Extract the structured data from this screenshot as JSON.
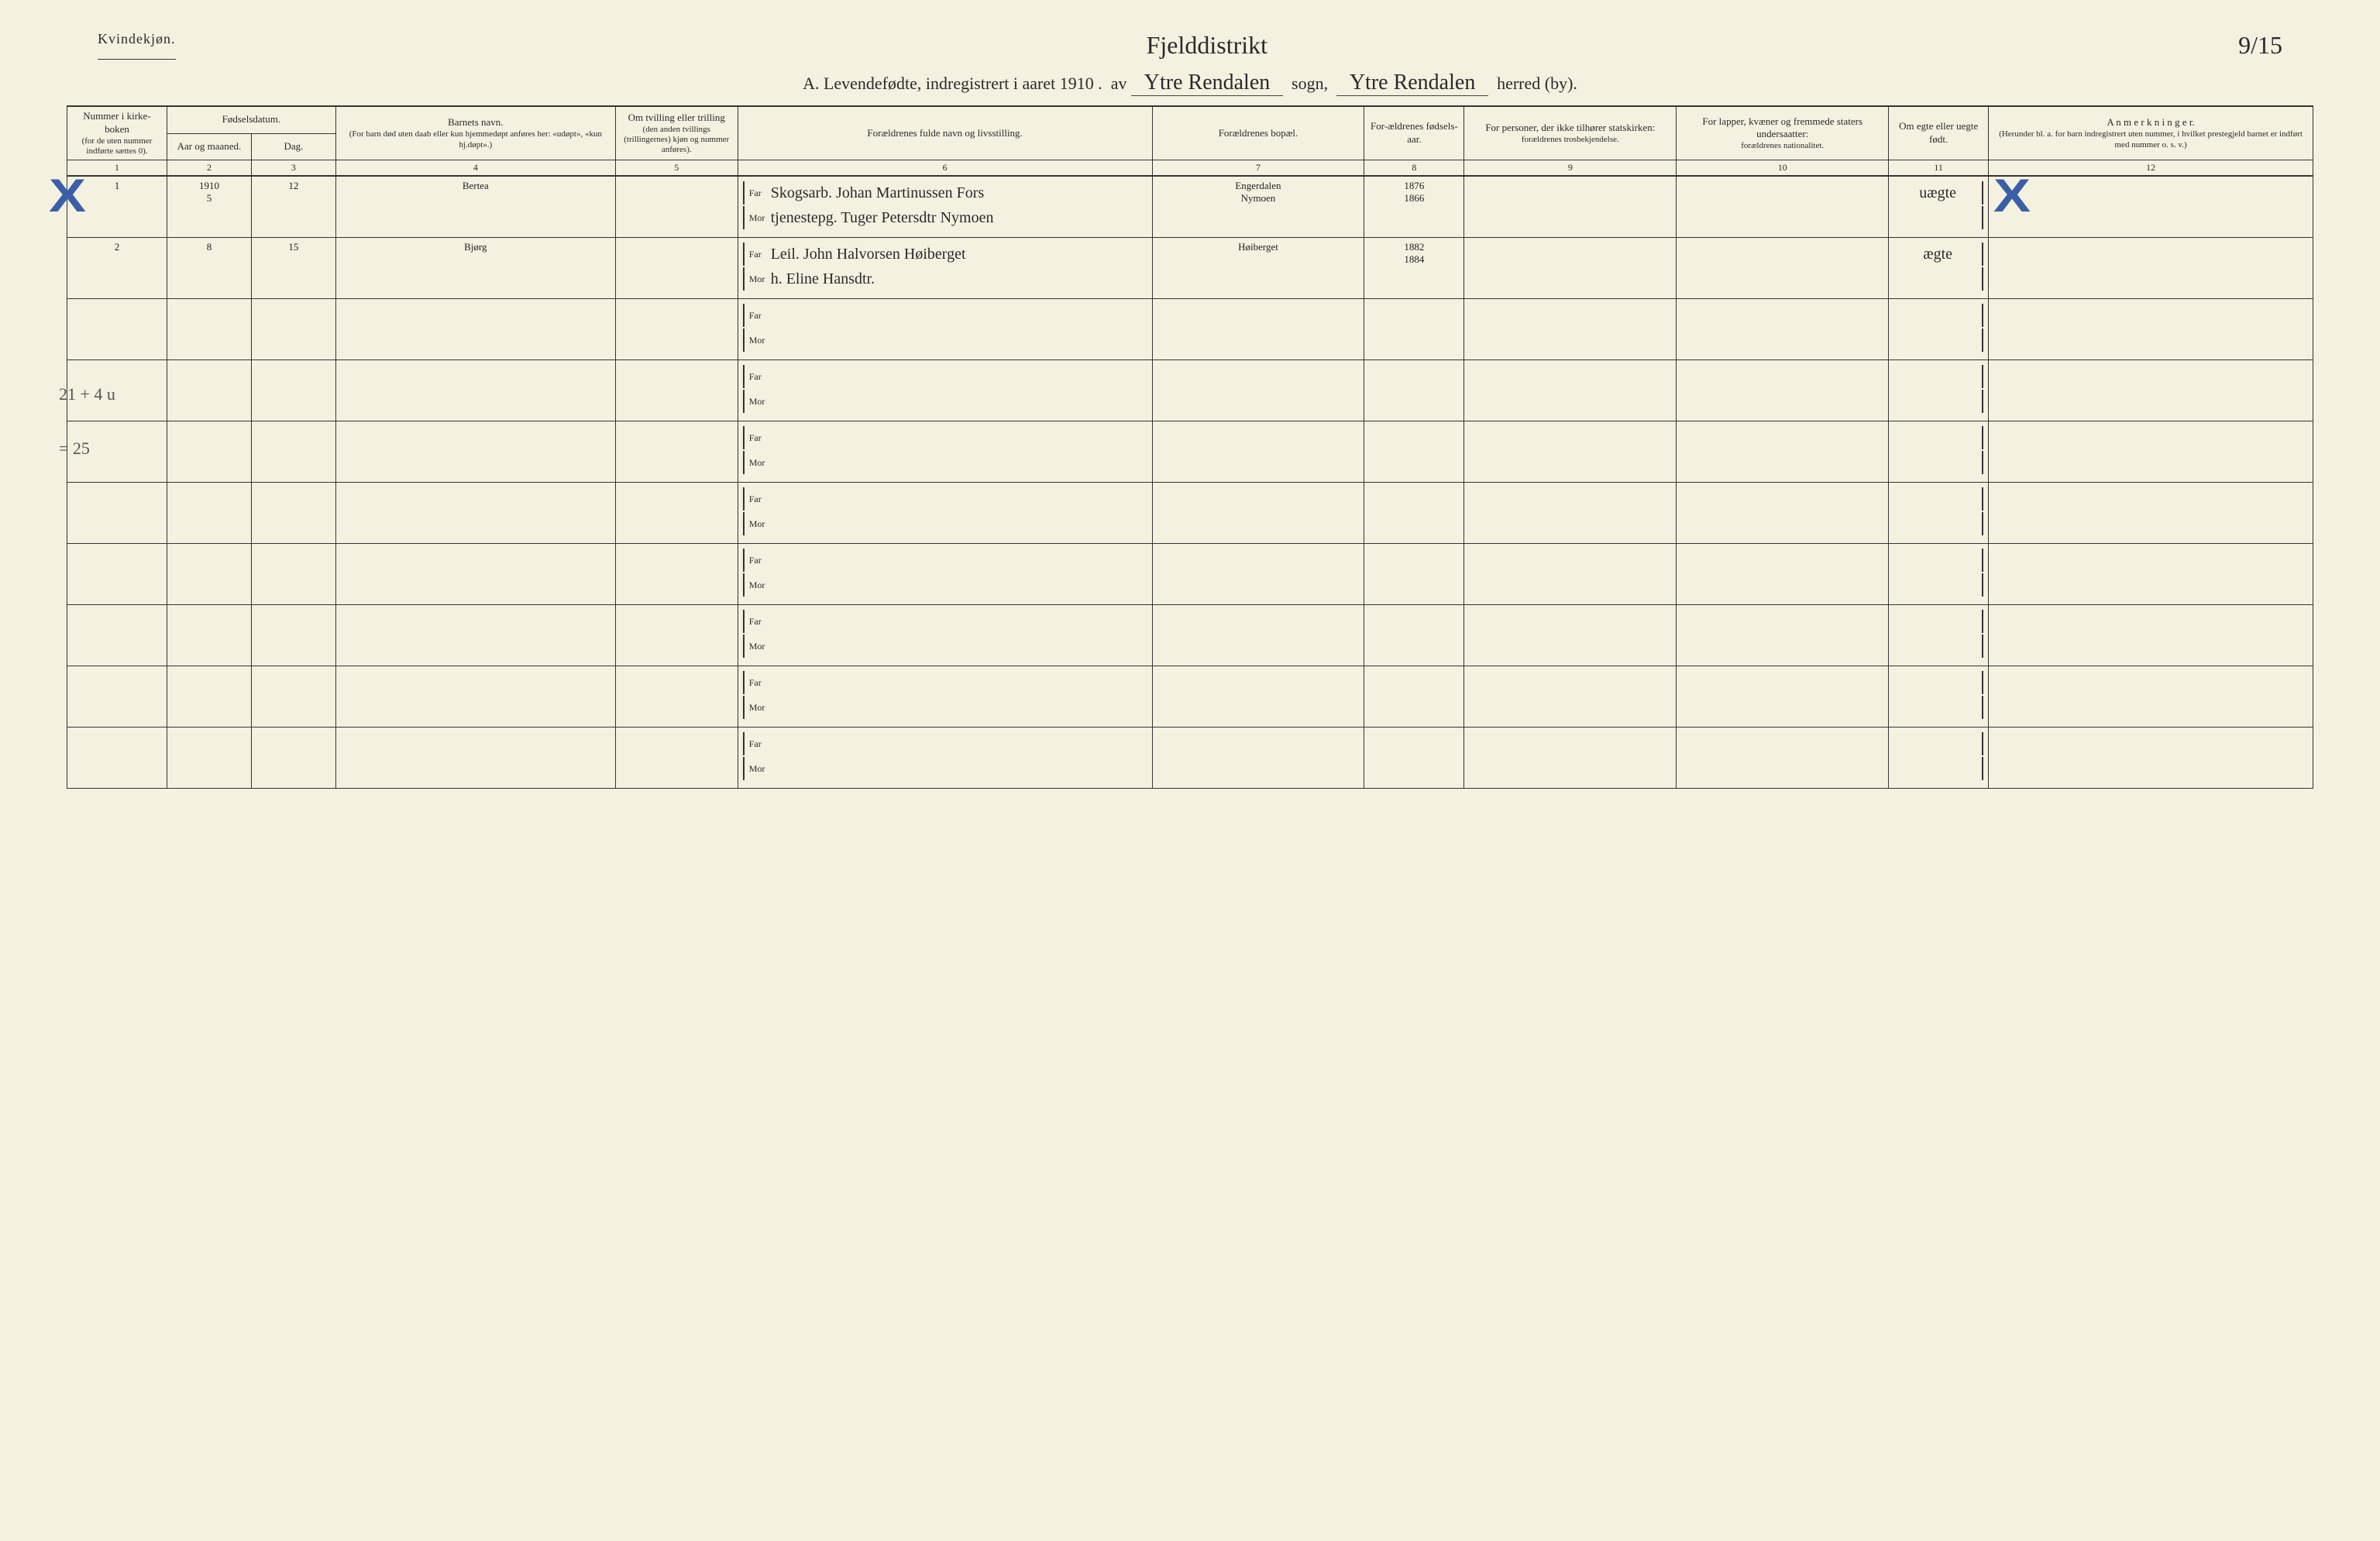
{
  "header": {
    "left": "Kvindekjøn.",
    "center_hand": "Fjelddistrikt",
    "right_hand": "9/15",
    "title_prefix": "A.  Levendefødte, indregistrert i aaret 191",
    "title_year_suffix": "0 .",
    "title_av": "av",
    "sogn_hand": "Ytre Rendalen",
    "sogn_label": "sogn,",
    "herred_hand": "Ytre Rendalen",
    "herred_label": "herred (by)."
  },
  "columns": {
    "c1": {
      "top": "Nummer i kirke-boken",
      "sub": "(for de uten nummer indførte sættes 0)."
    },
    "c2_group": "Fødselsdatum.",
    "c2": {
      "sub": "Aar og maaned."
    },
    "c3": {
      "sub": "Dag."
    },
    "c4": {
      "top": "Barnets navn.",
      "sub": "(For barn død uten daab eller kun hjemmedøpt anføres her: «udøpt», «kun hj.døpt».)"
    },
    "c5": {
      "top": "Om tvilling eller trilling",
      "sub": "(den anden tvillings (trillingernes) kjøn og nummer anføres)."
    },
    "c6": "Forældrenes fulde navn og livsstilling.",
    "c7": "Forældrenes bopæl.",
    "c8": {
      "top": "For-ældrenes fødsels-aar."
    },
    "c9": {
      "top": "For personer, der ikke tilhører statskirken:",
      "sub": "forældrenes trosbekjendelse."
    },
    "c10": {
      "top": "For lapper, kvæner og fremmede staters undersaatter:",
      "sub": "forældrenes nationalitet."
    },
    "c11": {
      "top": "Om egte eller uegte født."
    },
    "c12": {
      "top": "A n m e r k n i n g e r.",
      "sub": "(Herunder bl. a. for barn indregistrert uten nummer, i hvilket prestegjeld barnet er indført med nummer o. s. v.)"
    }
  },
  "colnums": [
    "1",
    "2",
    "3",
    "4",
    "5",
    "6",
    "7",
    "8",
    "9",
    "10",
    "11",
    "12"
  ],
  "far_label": "Far",
  "mor_label": "Mor",
  "rows": [
    {
      "num": "1",
      "year_month_top": "1910",
      "year_month_bottom": "5",
      "day": "12",
      "name": "Bertea",
      "far": "Skogsarb. Johan Martinussen Fors",
      "mor": "tjenestepg. Tuger Petersdtr Nymoen",
      "bopael_far": "Engerdalen",
      "bopael_mor": "Nymoen",
      "aar_far": "1876",
      "aar_mor": "1866",
      "egte": "uægte",
      "x_left": true,
      "x_right": true
    },
    {
      "num": "2",
      "year_month_top": "",
      "year_month_bottom": "8",
      "day": "15",
      "name": "Bjørg",
      "far": "Leil. John Halvorsen Høiberget",
      "mor": "h. Eline Hansdtr.",
      "bopael_far": "Høiberget",
      "bopael_mor": "",
      "aar_far": "1882",
      "aar_mor": "1884",
      "egte": "ægte",
      "x_left": false,
      "x_right": false
    }
  ],
  "margin_notes": {
    "n1": "21 + 4 u",
    "n2": "= 25"
  },
  "empty_row_count": 8
}
